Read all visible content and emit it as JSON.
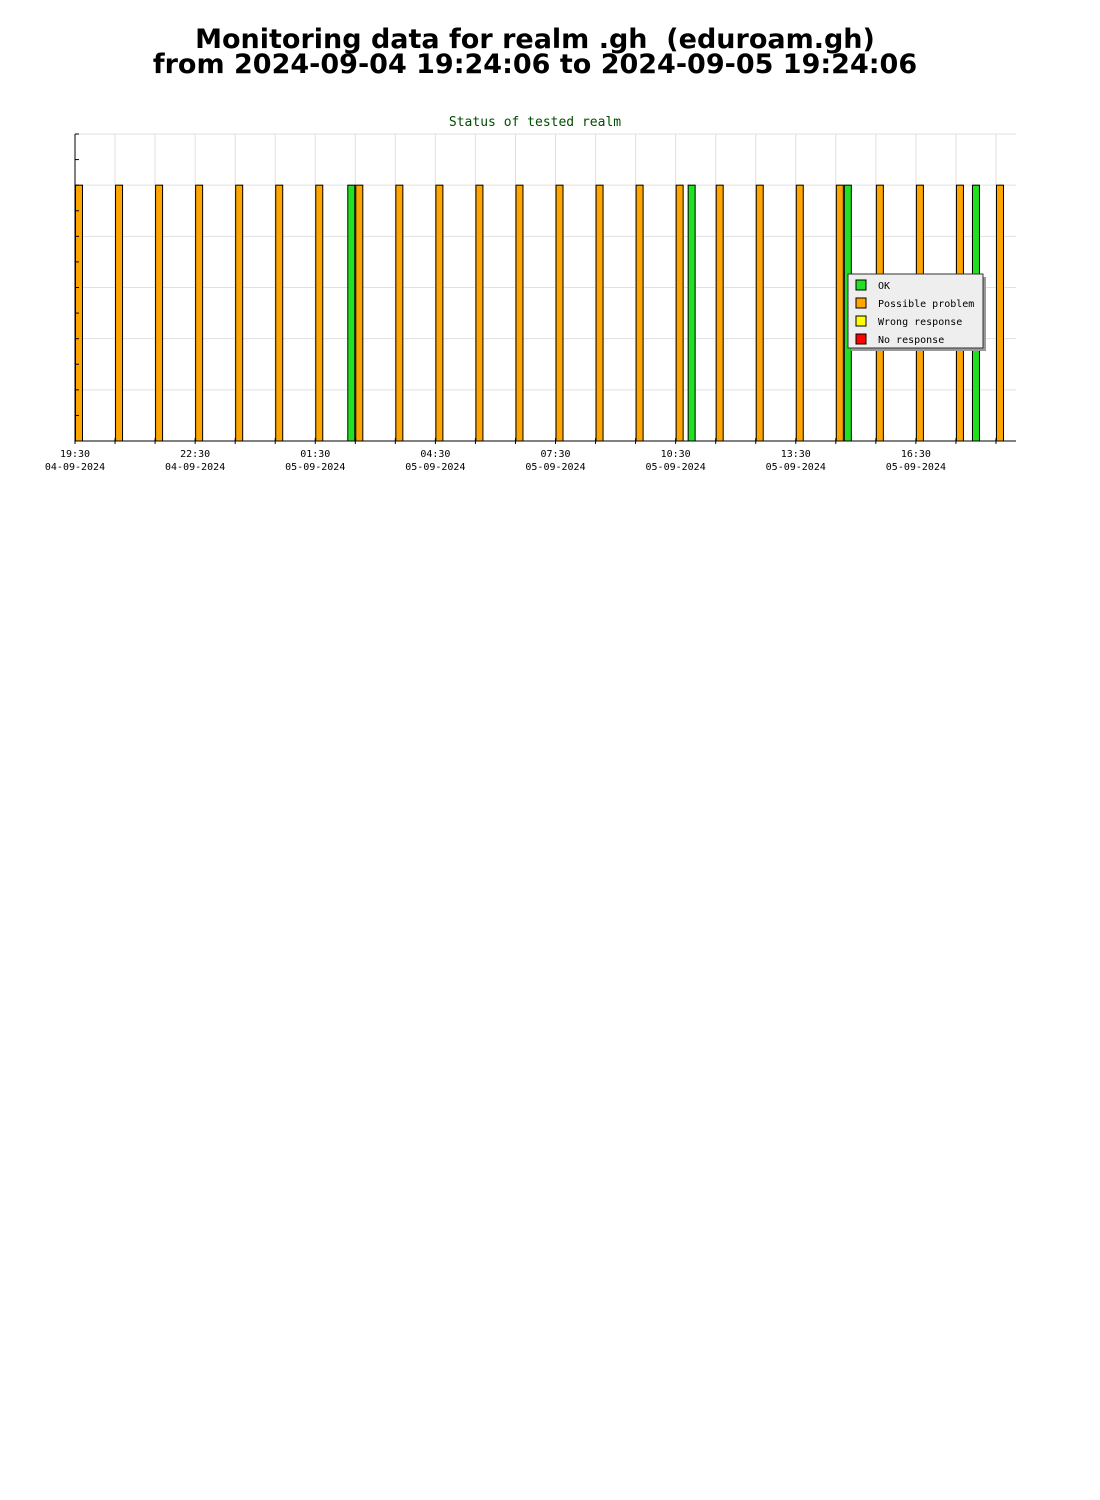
{
  "page": {
    "title_line1": "Monitoring data for realm .gh  (eduroam.gh)",
    "title_line2": "from 2024-09-04 19:24:06 to 2024-09-05 19:24:06"
  },
  "chart_data": {
    "type": "bar",
    "title": "Status of tested realm",
    "xlabel": "",
    "ylabel": "",
    "x_unit": "hours from 19:24 04-09-2024",
    "xlim": [
      0,
      23.5
    ],
    "ylim": [
      0,
      6
    ],
    "ticks": [
      {
        "time": "19:30",
        "date": "04-09-2024",
        "x": 0
      },
      {
        "time": "22:30",
        "date": "04-09-2024",
        "x": 3
      },
      {
        "time": "01:30",
        "date": "05-09-2024",
        "x": 6
      },
      {
        "time": "04:30",
        "date": "05-09-2024",
        "x": 9
      },
      {
        "time": "07:30",
        "date": "05-09-2024",
        "x": 12
      },
      {
        "time": "10:30",
        "date": "05-09-2024",
        "x": 15
      },
      {
        "time": "13:30",
        "date": "05-09-2024",
        "x": 18
      },
      {
        "time": "16:30",
        "date": "05-09-2024",
        "x": 21
      }
    ],
    "legend": {
      "position": "right",
      "entries": [
        {
          "name": "OK",
          "color": "#22e022"
        },
        {
          "name": "Possible problem",
          "color": "#ffa500"
        },
        {
          "name": "Wrong response",
          "color": "#ffff00"
        },
        {
          "name": "No response",
          "color": "#ff0000"
        }
      ]
    },
    "series": [
      {
        "status": "Possible problem",
        "color": "#ffa500",
        "x": [
          0.1,
          1.1,
          2.1,
          3.1,
          4.1,
          5.1,
          6.1,
          7.1,
          8.1,
          9.1,
          10.1,
          11.1,
          12.1,
          13.1,
          14.1,
          15.1,
          16.1,
          17.1,
          18.1,
          19.1,
          20.1,
          21.1,
          22.1,
          23.1
        ],
        "value": 5
      },
      {
        "status": "OK",
        "color": "#22e022",
        "x": [
          6.9,
          15.4,
          19.3,
          22.5
        ],
        "value": 5
      }
    ]
  }
}
